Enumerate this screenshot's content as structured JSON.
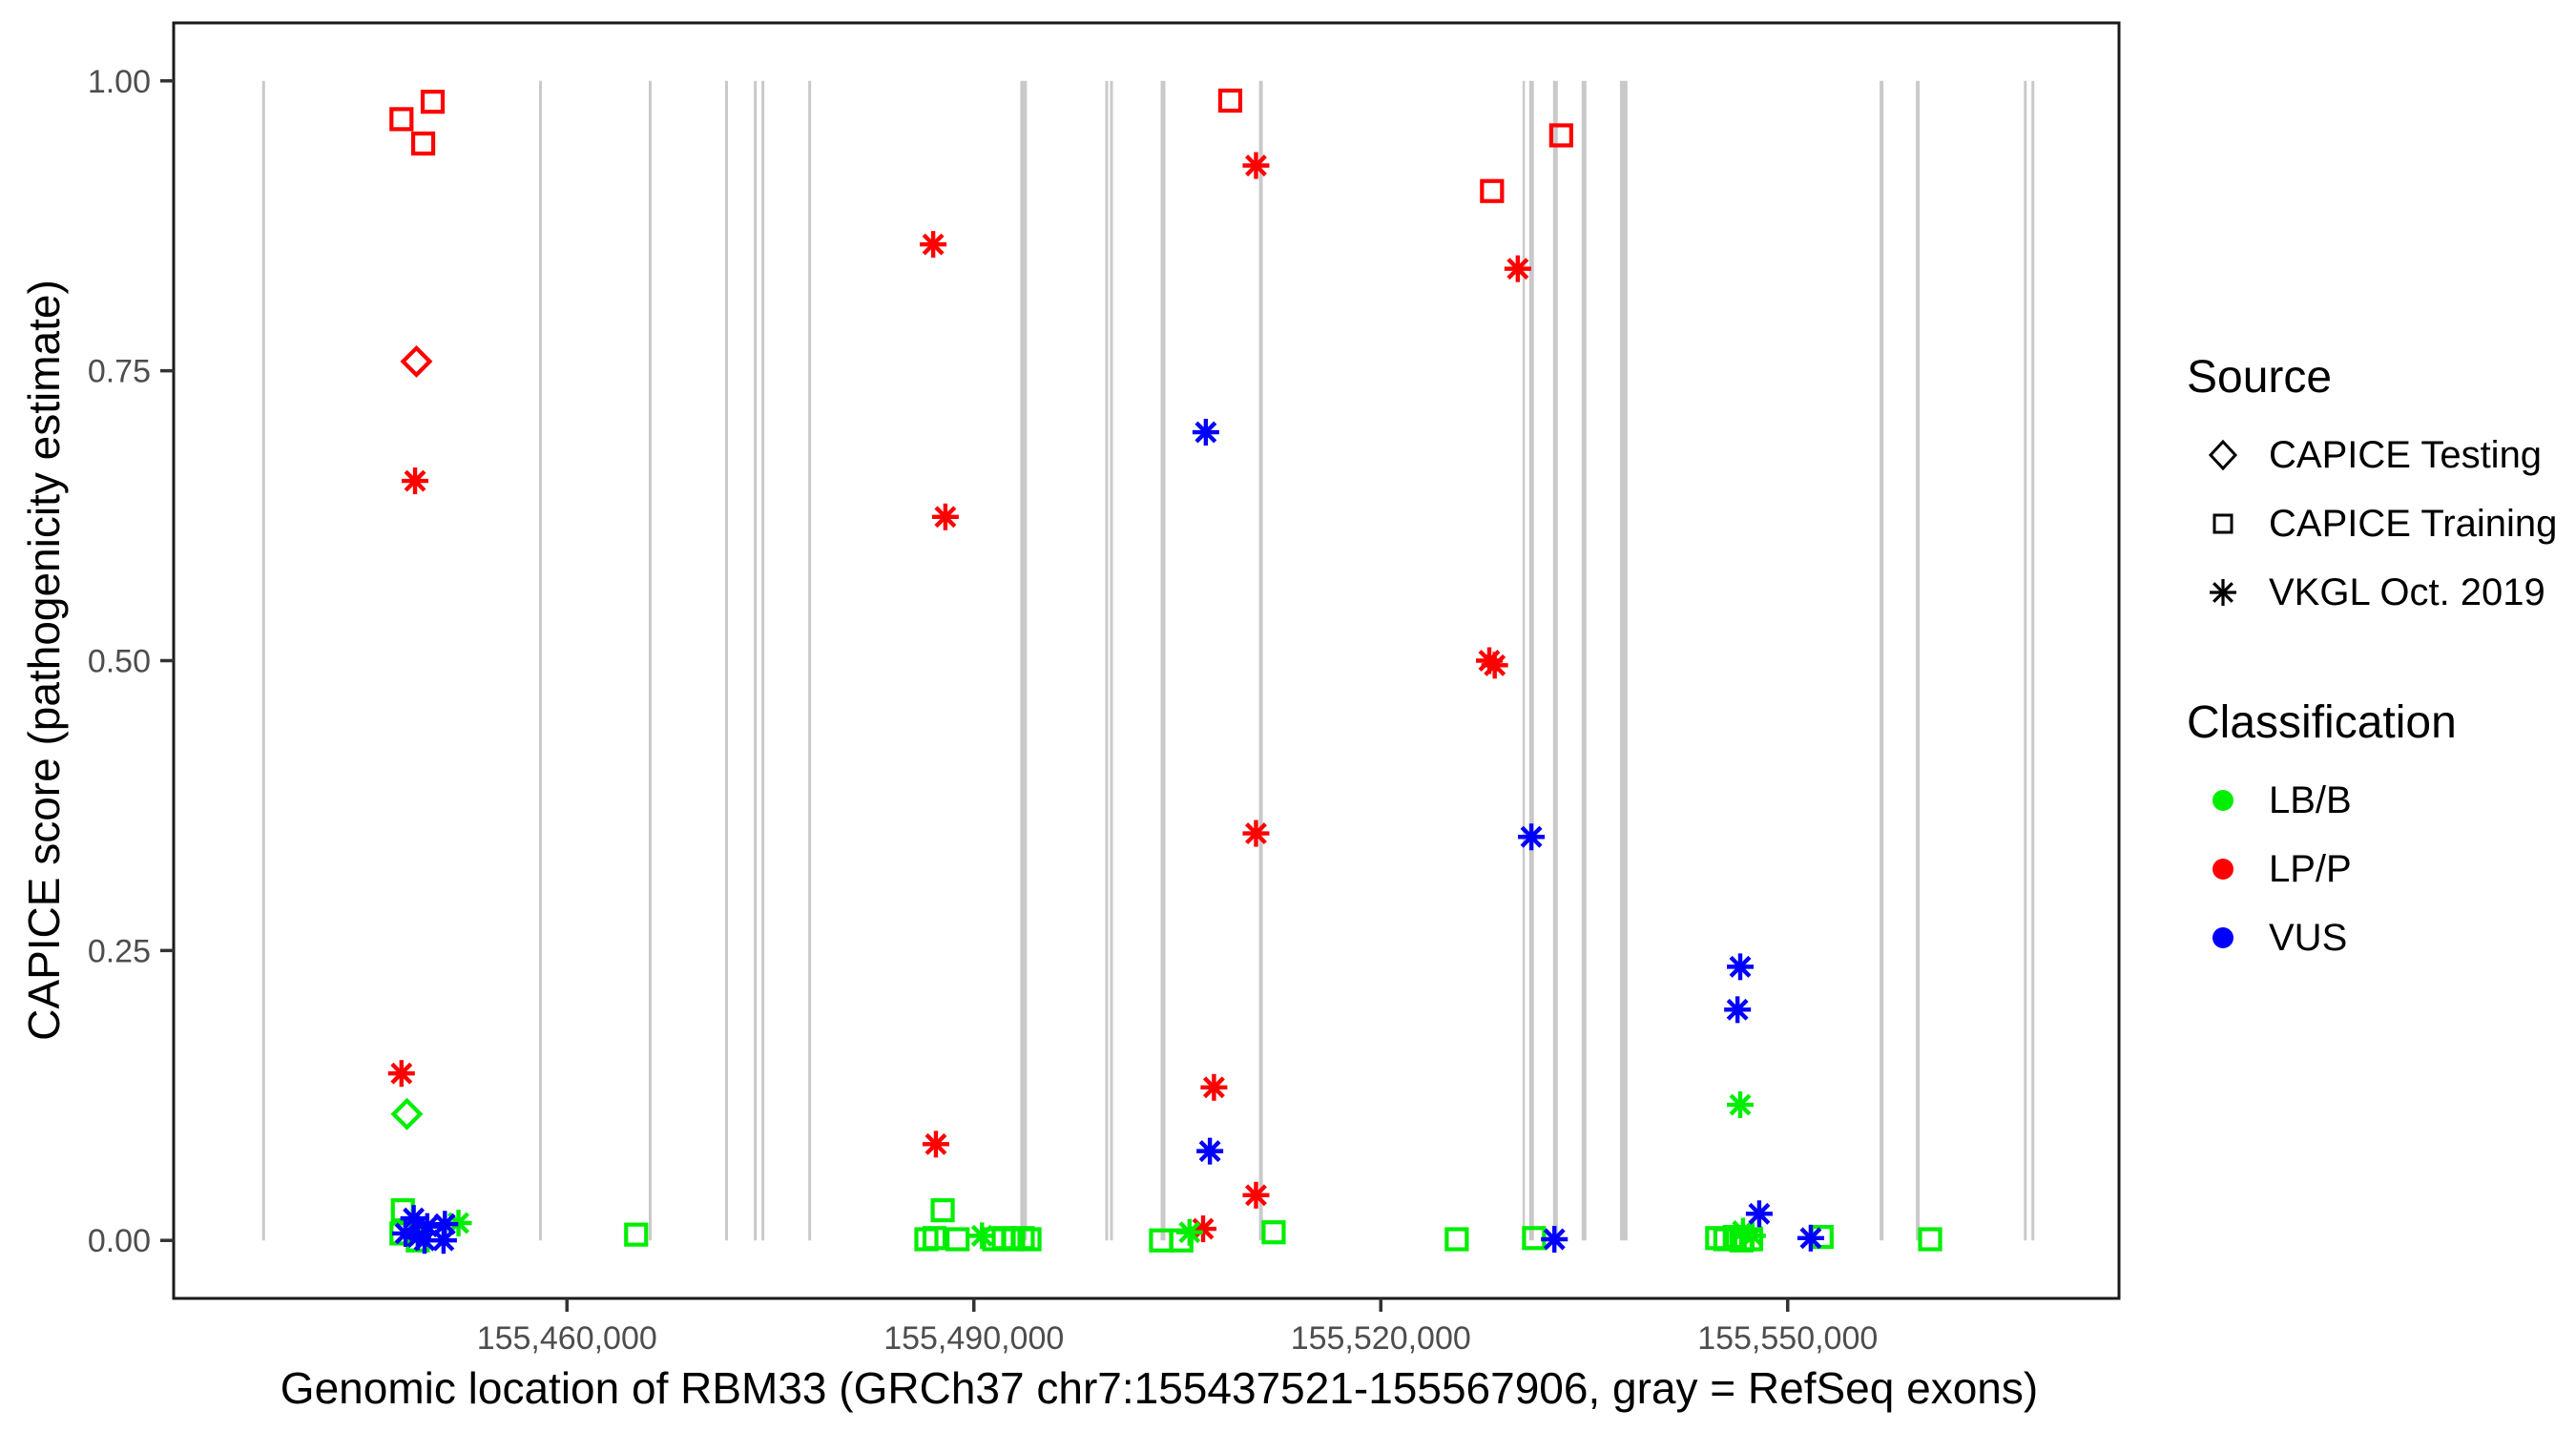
{
  "chart_data": {
    "type": "scatter",
    "title": "",
    "xlabel": "Genomic location of RBM33 (GRCh37 chr7:155437521-155567906, gray = RefSeq exons)",
    "ylabel": "CAPICE score (pathogenicity estimate)",
    "x_axis": {
      "tick_values": [
        155460000,
        155490000,
        155520000,
        155550000
      ],
      "tick_labels": [
        "155,460,000",
        "155,490,000",
        "155,520,000",
        "155,550,000"
      ],
      "range": [
        155431002,
        155574425
      ]
    },
    "y_axis": {
      "tick_values": [
        0,
        0.25,
        0.5,
        0.75,
        1.0
      ],
      "tick_labels": [
        "0.00",
        "0.25",
        "0.50",
        "0.75",
        "1.00"
      ],
      "range": [
        -0.05,
        1.05
      ]
    },
    "grid": false,
    "legend_position": "right",
    "colors": {
      "LB/B": "#00EE00",
      "LP/P": "#FF0000",
      "VUS": "#0000FF"
    },
    "shapes": {
      "testing": "diamond",
      "training": "square",
      "vkgl": "asterisk"
    },
    "exon_color": "#C9C9C9",
    "exons": [
      [
        155437530,
        155437740
      ],
      [
        155457940,
        155458150
      ],
      [
        155466030,
        155466240
      ],
      [
        155471660,
        155471870
      ],
      [
        155473780,
        155473990
      ],
      [
        155474340,
        155474550
      ],
      [
        155477790,
        155478000
      ],
      [
        155493420,
        155493910
      ],
      [
        155499690,
        155499900
      ],
      [
        155500040,
        155500250
      ],
      [
        155503770,
        155504120
      ],
      [
        155511020,
        155511300
      ],
      [
        155530450,
        155530590
      ],
      [
        155530940,
        155531290
      ],
      [
        155532700,
        155533050
      ],
      [
        155534810,
        155535160
      ],
      [
        155537630,
        155538190
      ],
      [
        155556780,
        155557060
      ],
      [
        155559450,
        155559730
      ],
      [
        155567410,
        155567620
      ],
      [
        155567970,
        155568180
      ]
    ],
    "points": [
      [
        155447800,
        0.967,
        "training",
        "LP/P"
      ],
      [
        155450100,
        0.982,
        "training",
        "LP/P"
      ],
      [
        155449400,
        0.946,
        "training",
        "LP/P"
      ],
      [
        155508900,
        0.983,
        "training",
        "LP/P"
      ],
      [
        155528200,
        0.905,
        "training",
        "LP/P"
      ],
      [
        155533300,
        0.953,
        "training",
        "LP/P"
      ],
      [
        155448900,
        0.758,
        "testing",
        "LP/P"
      ],
      [
        155448800,
        0.655,
        "vkgl",
        "LP/P"
      ],
      [
        155447800,
        0.144,
        "vkgl",
        "LP/P"
      ],
      [
        155487000,
        0.859,
        "vkgl",
        "LP/P"
      ],
      [
        155487900,
        0.624,
        "vkgl",
        "LP/P"
      ],
      [
        155487200,
        0.083,
        "vkgl",
        "LP/P"
      ],
      [
        155510800,
        0.927,
        "vkgl",
        "LP/P"
      ],
      [
        155510800,
        0.351,
        "vkgl",
        "LP/P"
      ],
      [
        155507700,
        0.132,
        "vkgl",
        "LP/P"
      ],
      [
        155510800,
        0.039,
        "vkgl",
        "LP/P"
      ],
      [
        155530100,
        0.838,
        "vkgl",
        "LP/P"
      ],
      [
        155528000,
        0.5,
        "vkgl",
        "LP/P"
      ],
      [
        155528400,
        0.496,
        "vkgl",
        "LP/P"
      ],
      [
        155506900,
        0.01,
        "vkgl",
        "LP/P"
      ],
      [
        155448200,
        0.109,
        "testing",
        "LB/B"
      ],
      [
        155447900,
        0.026,
        "training",
        "LB/B"
      ],
      [
        155447800,
        0.006,
        "training",
        "LB/B"
      ],
      [
        155449000,
        0.0,
        "training",
        "LB/B"
      ],
      [
        155452000,
        0.015,
        "vkgl",
        "LB/B"
      ],
      [
        155465100,
        0.005,
        "training",
        "LB/B"
      ],
      [
        155487700,
        0.026,
        "training",
        "LB/B"
      ],
      [
        155486500,
        0.001,
        "training",
        "LB/B"
      ],
      [
        155487100,
        0.002,
        "training",
        "LB/B"
      ],
      [
        155488800,
        0.001,
        "training",
        "LB/B"
      ],
      [
        155490600,
        0.004,
        "vkgl",
        "LB/B"
      ],
      [
        155491500,
        0.001,
        "training",
        "LB/B"
      ],
      [
        155492200,
        0.002,
        "training",
        "LB/B"
      ],
      [
        155492900,
        0.001,
        "training",
        "LB/B"
      ],
      [
        155493600,
        0.002,
        "training",
        "LB/B"
      ],
      [
        155494100,
        0.001,
        "training",
        "LB/B"
      ],
      [
        155503800,
        0.0,
        "training",
        "LB/B"
      ],
      [
        155505300,
        0.0,
        "training",
        "LB/B"
      ],
      [
        155505900,
        0.007,
        "vkgl",
        "LB/B"
      ],
      [
        155512100,
        0.007,
        "training",
        "LB/B"
      ],
      [
        155525600,
        0.001,
        "training",
        "LB/B"
      ],
      [
        155531300,
        0.002,
        "training",
        "LB/B"
      ],
      [
        155544800,
        0.002,
        "training",
        "LB/B"
      ],
      [
        155545400,
        0.001,
        "training",
        "LB/B"
      ],
      [
        155546100,
        0.003,
        "training",
        "LB/B"
      ],
      [
        155546600,
        0.0,
        "training",
        "LB/B"
      ],
      [
        155547300,
        0.001,
        "training",
        "LB/B"
      ],
      [
        155547400,
        0.004,
        "vkgl",
        "LB/B"
      ],
      [
        155546700,
        0.008,
        "vkgl",
        "LB/B"
      ],
      [
        155546500,
        0.117,
        "vkgl",
        "LB/B"
      ],
      [
        155552500,
        0.003,
        "training",
        "LB/B"
      ],
      [
        155560500,
        0.001,
        "training",
        "LB/B"
      ],
      [
        155448700,
        0.019,
        "vkgl",
        "VUS"
      ],
      [
        155448100,
        0.006,
        "vkgl",
        "VUS"
      ],
      [
        155449700,
        0.012,
        "vkgl",
        "VUS"
      ],
      [
        155449500,
        0.0,
        "vkgl",
        "VUS"
      ],
      [
        155451000,
        0.014,
        "vkgl",
        "VUS"
      ],
      [
        155450900,
        0.0,
        "vkgl",
        "VUS"
      ],
      [
        155449000,
        0.003,
        "vkgl",
        "VUS"
      ],
      [
        155507100,
        0.697,
        "vkgl",
        "VUS"
      ],
      [
        155507400,
        0.077,
        "vkgl",
        "VUS"
      ],
      [
        155531100,
        0.348,
        "vkgl",
        "VUS"
      ],
      [
        155532800,
        0.001,
        "vkgl",
        "VUS"
      ],
      [
        155546500,
        0.236,
        "vkgl",
        "VUS"
      ],
      [
        155546300,
        0.199,
        "vkgl",
        "VUS"
      ],
      [
        155547900,
        0.023,
        "vkgl",
        "VUS"
      ],
      [
        155551700,
        0.002,
        "vkgl",
        "VUS"
      ]
    ]
  },
  "legend_source": {
    "title": "Source",
    "items": [
      {
        "symbol": "diamond",
        "label": "CAPICE Testing"
      },
      {
        "symbol": "square",
        "label": "CAPICE Training"
      },
      {
        "symbol": "asterisk",
        "label": "VKGL Oct. 2019"
      }
    ]
  },
  "legend_classification": {
    "title": "Classification",
    "items": [
      {
        "label": "LB/B",
        "color": "#00EE00"
      },
      {
        "label": "LP/P",
        "color": "#FF0000"
      },
      {
        "label": "VUS",
        "color": "#0000FF"
      }
    ]
  },
  "style": {
    "tick_label_color": "#4D4D4D",
    "axis_color": "#1A1A1A",
    "tick_color": "#333333"
  }
}
